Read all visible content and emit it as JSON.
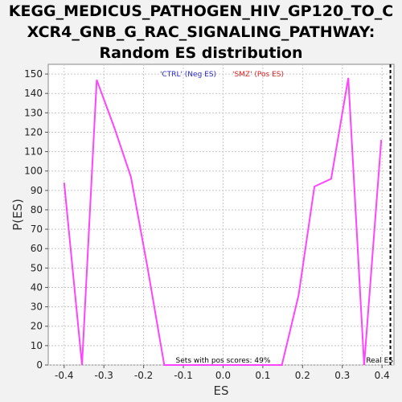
{
  "title_lines": [
    "KEGG_MEDICUS_PATHOGEN_HIV_GP120_TO_C",
    "XCR4_GNB_G_RAC_SIGNALING_PATHWAY:",
    "Random ES distribution"
  ],
  "chart_data": {
    "type": "line",
    "title": "KEGG_MEDICUS_PATHOGEN_HIV_GP120_TO_CXCR4_GNB_G_RAC_SIGNALING_PATHWAY: Random ES distribution",
    "xlabel": "ES",
    "ylabel": "P(ES)",
    "xlim": [
      -0.44,
      0.43
    ],
    "ylim": [
      0,
      155
    ],
    "xticks": [
      -0.4,
      -0.3,
      -0.2,
      -0.1,
      0.0,
      0.1,
      0.2,
      0.3,
      0.4
    ],
    "xtick_labels": [
      "-0.4",
      "-0.3",
      "-0.2",
      "-0.1",
      "0.0",
      "0.1",
      "0.2",
      "0.3",
      "0.4"
    ],
    "yticks": [
      0,
      10,
      20,
      30,
      40,
      50,
      60,
      70,
      80,
      90,
      100,
      110,
      120,
      130,
      140,
      150
    ],
    "ytick_labels": [
      "0",
      "10",
      "20",
      "30",
      "40",
      "50",
      "60",
      "70",
      "80",
      "90",
      "100",
      "110",
      "120",
      "130",
      "140",
      "150"
    ],
    "series_color": "#ff44ff",
    "series": [
      {
        "name": "distribution",
        "points": [
          [
            -0.4,
            94
          ],
          [
            -0.355,
            0
          ],
          [
            -0.318,
            147
          ],
          [
            -0.273,
            122
          ],
          [
            -0.232,
            97
          ],
          [
            -0.19,
            50
          ],
          [
            -0.148,
            0
          ],
          [
            0.148,
            0
          ],
          [
            0.19,
            36
          ],
          [
            0.23,
            92
          ],
          [
            0.272,
            96
          ],
          [
            0.315,
            148
          ],
          [
            0.355,
            0
          ],
          [
            0.398,
            116
          ]
        ]
      }
    ],
    "real_es": 0.421,
    "real_es_label": "Real ES",
    "legend": [
      {
        "label": "'CTRL' (Neg ES)",
        "color": "#2a2acc"
      },
      {
        "label": "'SMZ' (Pos ES)",
        "color": "#dd2222"
      }
    ],
    "legend_position": "top-center",
    "annotation": "Sets with pos scores: 49%",
    "grid": true
  }
}
